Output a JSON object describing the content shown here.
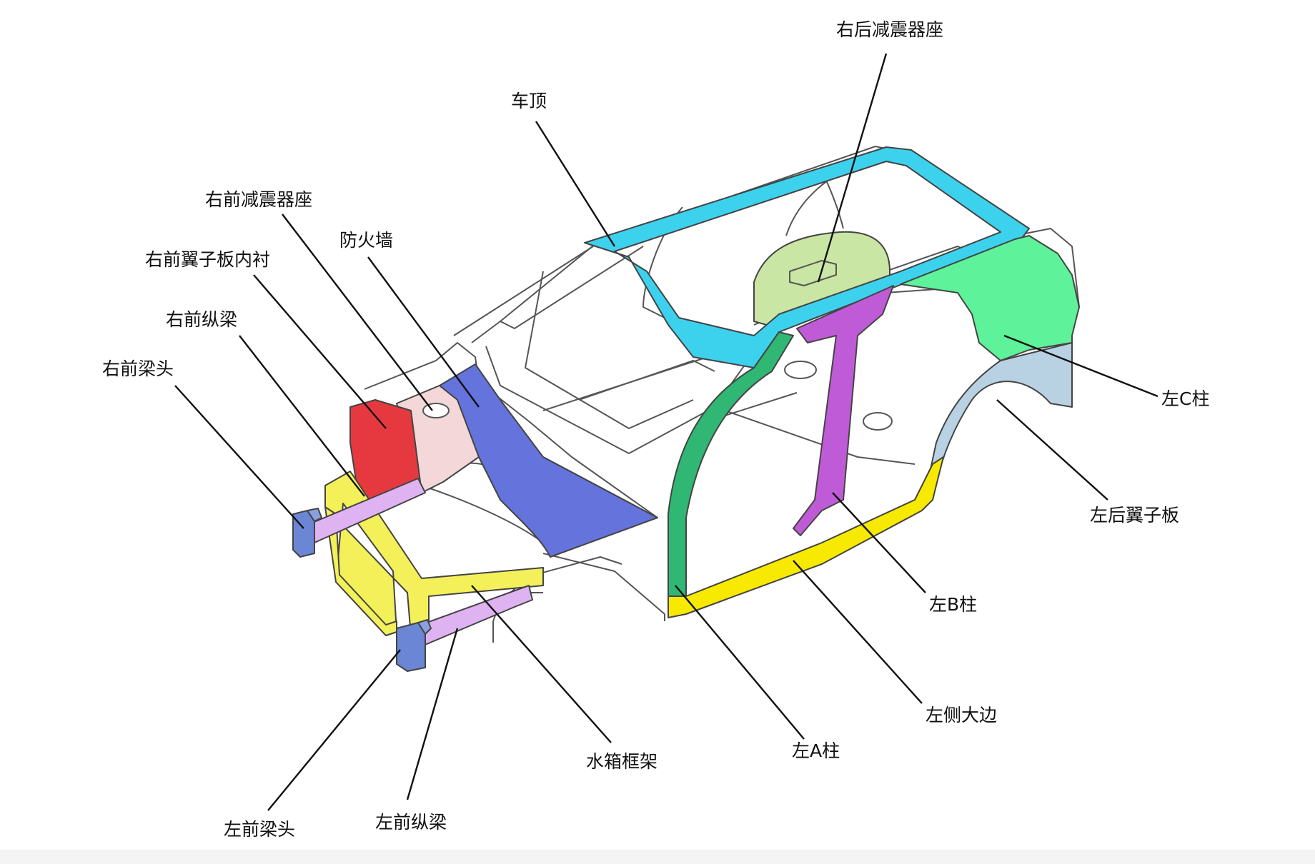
{
  "diagram": {
    "labels": {
      "roof": "车顶",
      "right_rear_shock_tower": "右后减震器座",
      "right_front_shock_tower": "右前减震器座",
      "firewall": "防火墙",
      "right_front_fender_liner": "右前翼子板内衬",
      "right_front_rail": "右前纵梁",
      "right_front_rail_tip": "右前梁头",
      "left_c_pillar": "左C柱",
      "left_rear_quarter_panel": "左后翼子板",
      "left_b_pillar": "左B柱",
      "left_rocker": "左侧大边",
      "radiator_frame": "水箱框架",
      "left_a_pillar": "左A柱",
      "left_front_rail_tip": "左前梁头",
      "left_front_rail": "左前纵梁"
    },
    "colors": {
      "roof": "#3cd2ee",
      "rear_shock_tower": "#c9e6a4",
      "front_shock_tower": "#f3d7d9",
      "fender_liner": "#e6393f",
      "firewall": "#6573dd",
      "rail": "#dfb2f2",
      "rail_tip": "#6a86d4",
      "radiator_frame": "#f4f05a",
      "a_pillar": "#2fb773",
      "b_pillar": "#c05bd8",
      "c_pillar": "#5ef29a",
      "rocker": "#f7ea00",
      "rear_quarter": "#b9d2e3",
      "outline": "#555555"
    }
  }
}
